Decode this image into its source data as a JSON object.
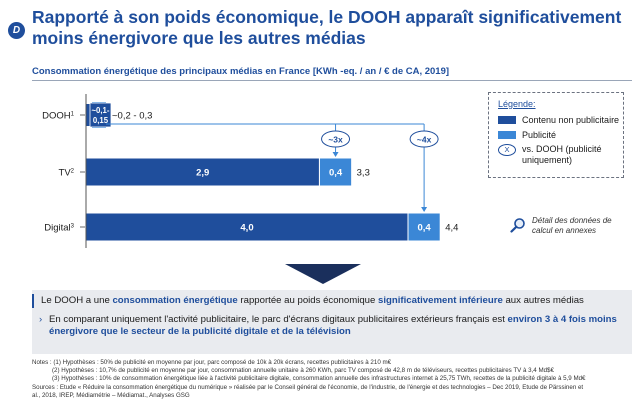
{
  "header": {
    "logo_letter": "D",
    "title": "Rapporté à son poids économique, le DOOH apparaît significativement moins énergivore que les autres médias"
  },
  "chart_data": {
    "type": "bar",
    "orientation": "horizontal",
    "stacked": true,
    "title": "Consommation énergétique des principaux médias en France [KWh -eq. / an / € de CA, 2019]",
    "categories": [
      "DOOH",
      "TV",
      "Digital"
    ],
    "category_notes": [
      "1",
      "2",
      "3"
    ],
    "series": [
      {
        "name": "Contenu non publicitaire",
        "color": "#1f4e9c",
        "values": [
          0.1,
          2.9,
          4.0
        ],
        "labels": [
          "~0,1-",
          "2,9",
          "4,0"
        ]
      },
      {
        "name": "Publicité",
        "color": "#3b87d6",
        "values": [
          0.15,
          0.4,
          0.4
        ],
        "labels": [
          "0,15",
          "0,4",
          "0,4"
        ]
      }
    ],
    "totals": [
      "~0,2 - 0,3",
      "3,3",
      "4,4"
    ],
    "comparisons": [
      {
        "label": "~3x",
        "target": "TV"
      },
      {
        "label": "~4x",
        "target": "Digital"
      }
    ],
    "xlim": [
      0,
      4.4
    ],
    "grid": false,
    "legend": {
      "title": "Légende:",
      "position": "right",
      "circle_symbol": "X",
      "circle_label": "vs. DOOH (publicité uniquement)"
    }
  },
  "detail": {
    "text": "Détail des données de calcul en annexes",
    "icon": "magnifier-icon"
  },
  "conclusion": {
    "p1": [
      {
        "t": "Le DOOH a une ",
        "b": false
      },
      {
        "t": "consommation énergétique",
        "b": true
      },
      {
        "t": " rapportée au poids économique ",
        "b": false
      },
      {
        "t": "significativement inférieure",
        "b": true
      },
      {
        "t": " aux autres médias",
        "b": false
      }
    ],
    "p2_chevron": "›",
    "p2": [
      {
        "t": "En comparant uniquement l'activité publicitaire, le parc d'écrans digitaux publicitaires extérieurs français est ",
        "b": false
      },
      {
        "t": "environ 3 à 4 fois moins énergivore que le secteur de la publicité digitale et de la télévision",
        "b": true
      }
    ]
  },
  "notes": [
    "Notes : (1) Hypothèses : 50% de publicité en moyenne par jour, parc composé de 10k à 20k écrans, recettes publicitaires à 210 m€",
    "(2) Hypothèses : 10,7% de publicité en moyenne par jour, consommation annuelle unitaire à 260 KWh, parc TV composé de 42,8 m de téléviseurs, recettes publicitaires TV à 3,4 Md$€",
    "(3) Hypothèses : 10% de consommation énergétique liée à l'activité publicitaire digitale, consommation annuelle des infrastructures internet à 25,75 TWh, recettes de la publicité digitale à 5,9 Md€",
    "Sources : Etude « Réduire la consommation énergétique du numérique » réalisée par le Conseil général de l'économie, de l'industrie, de l'énergie et des technologies – Dec 2019, Etude de Pärssinen et",
    "al., 2018, IREP, Médiamétrie – Médiamat., Analyses GSG"
  ]
}
